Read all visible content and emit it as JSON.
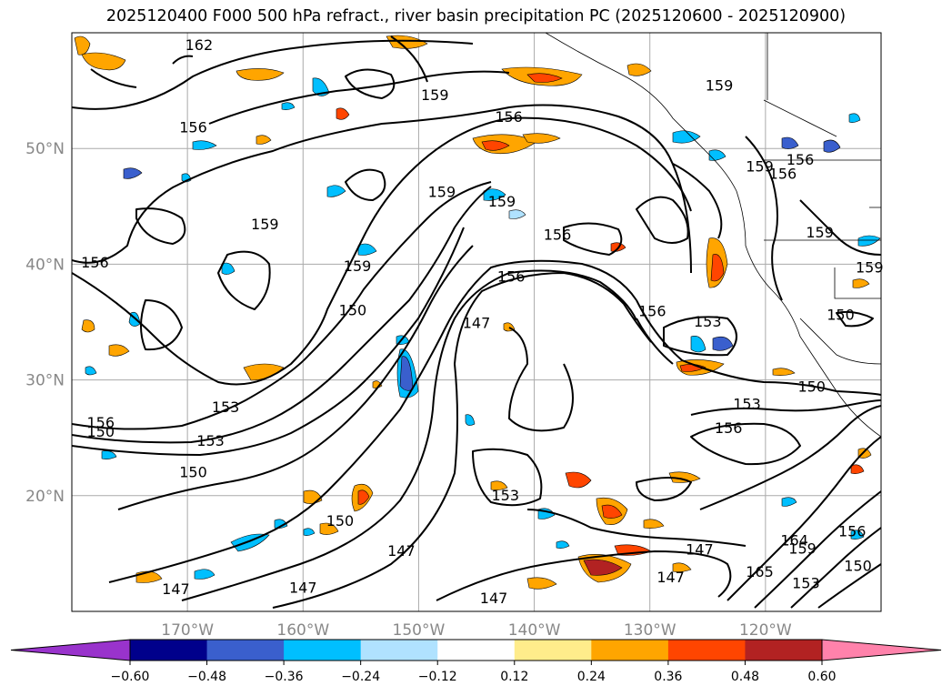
{
  "title": "2025120400 F000 500 hPa refract., river basin precipitation PC (2025120600 - 2025120900)",
  "map": {
    "lon_range": [
      -180,
      -110
    ],
    "lat_range": [
      10,
      60
    ],
    "lat_labels": [
      {
        "lat": 50,
        "text": "50°N"
      },
      {
        "lat": 40,
        "text": "40°N"
      },
      {
        "lat": 30,
        "text": "30°N"
      },
      {
        "lat": 20,
        "text": "20°N"
      }
    ],
    "lon_labels": [
      {
        "lon": -170,
        "text": "170°W"
      },
      {
        "lon": -160,
        "text": "160°W"
      },
      {
        "lon": -150,
        "text": "150°W"
      },
      {
        "lon": -140,
        "text": "140°W"
      },
      {
        "lon": -130,
        "text": "130°W"
      },
      {
        "lon": -120,
        "text": "120°W"
      }
    ],
    "contour_labels": [
      {
        "text": "162",
        "lon": -169.0,
        "lat": 58.5
      },
      {
        "text": "156",
        "lon": -169.5,
        "lat": 51.4
      },
      {
        "text": "159",
        "lon": -148.6,
        "lat": 54.2
      },
      {
        "text": "156",
        "lon": -142.2,
        "lat": 52.3
      },
      {
        "text": "159",
        "lon": -163.3,
        "lat": 43.0
      },
      {
        "text": "159",
        "lon": -148.0,
        "lat": 45.8
      },
      {
        "text": "159",
        "lon": -142.8,
        "lat": 45.0
      },
      {
        "text": "156",
        "lon": -138.0,
        "lat": 42.1
      },
      {
        "text": "159",
        "lon": -155.3,
        "lat": 39.4
      },
      {
        "text": "156",
        "lon": -142.0,
        "lat": 38.5
      },
      {
        "text": "150",
        "lon": -155.7,
        "lat": 35.6
      },
      {
        "text": "147",
        "lon": -145.0,
        "lat": 34.5
      },
      {
        "text": "156",
        "lon": -178.0,
        "lat": 39.7
      },
      {
        "text": "156",
        "lon": -177.5,
        "lat": 25.9
      },
      {
        "text": "150",
        "lon": -177.5,
        "lat": 25.1
      },
      {
        "text": "153",
        "lon": -166.7,
        "lat": 27.2
      },
      {
        "text": "153",
        "lon": -168.0,
        "lat": 24.3
      },
      {
        "text": "150",
        "lon": -169.5,
        "lat": 21.6
      },
      {
        "text": "150",
        "lon": -156.8,
        "lat": 17.4
      },
      {
        "text": "147",
        "lon": -151.5,
        "lat": 14.8
      },
      {
        "text": "147",
        "lon": -171.0,
        "lat": 11.5
      },
      {
        "text": "147",
        "lon": -160.0,
        "lat": 11.6
      },
      {
        "text": "147",
        "lon": -143.5,
        "lat": 10.7
      },
      {
        "text": "153",
        "lon": -142.5,
        "lat": 19.6
      },
      {
        "text": "147",
        "lon": -125.7,
        "lat": 14.9
      },
      {
        "text": "147",
        "lon": -128.2,
        "lat": 12.5
      },
      {
        "text": "153",
        "lon": -125.0,
        "lat": 34.6
      },
      {
        "text": "156",
        "lon": -129.8,
        "lat": 35.5
      },
      {
        "text": "153",
        "lon": -121.6,
        "lat": 27.5
      },
      {
        "text": "156",
        "lon": -123.2,
        "lat": 25.4
      },
      {
        "text": "150",
        "lon": -116.0,
        "lat": 29.0
      },
      {
        "text": "150",
        "lon": -113.5,
        "lat": 35.2
      },
      {
        "text": "156",
        "lon": -118.5,
        "lat": 47.4
      },
      {
        "text": "156",
        "lon": -117.0,
        "lat": 48.6
      },
      {
        "text": "159",
        "lon": -115.3,
        "lat": 42.3
      },
      {
        "text": "159",
        "lon": -111.0,
        "lat": 39.3
      },
      {
        "text": "159",
        "lon": -124.0,
        "lat": 55.0
      },
      {
        "text": "159",
        "lon": -120.5,
        "lat": 48.0
      },
      {
        "text": "165",
        "lon": -120.5,
        "lat": 13.0
      },
      {
        "text": "159",
        "lon": -116.8,
        "lat": 15.0
      },
      {
        "text": "156",
        "lon": -112.5,
        "lat": 16.5
      },
      {
        "text": "153",
        "lon": -116.5,
        "lat": 12.0
      },
      {
        "text": "150",
        "lon": -112.0,
        "lat": 13.5
      },
      {
        "text": "164",
        "lon": -117.5,
        "lat": 15.7
      }
    ]
  },
  "colorbar": {
    "ticks": [
      "−0.60",
      "−0.48",
      "−0.36",
      "−0.24",
      "−0.12",
      "0.12",
      "0.24",
      "0.36",
      "0.48",
      "0.60"
    ],
    "colors": {
      "under": "#9933cc",
      "bins": [
        "#00008b",
        "#3a5fcd",
        "#00bfff",
        "#b0e2ff",
        "#ffffff",
        "#ffec8b",
        "#ffa500",
        "#ff4500",
        "#b22222"
      ],
      "over": "#ff82ab"
    }
  }
}
